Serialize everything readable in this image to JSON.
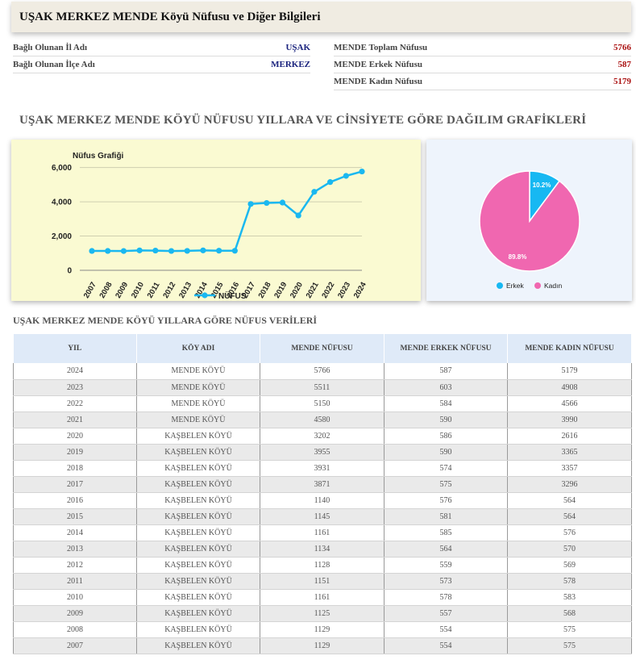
{
  "header": {
    "title": "UŞAK MERKEZ MENDE Köyü Nüfusu ve Diğer Bilgileri"
  },
  "info_left": [
    {
      "label": "Bağlı Olunan İl Adı",
      "value": "UŞAK"
    },
    {
      "label": "Bağlı Olunan İlçe Adı",
      "value": "MERKEZ"
    }
  ],
  "info_right": [
    {
      "label": "MENDE Toplam Nüfusu",
      "value": "5766"
    },
    {
      "label": "MENDE Erkek Nüfusu",
      "value": "587"
    },
    {
      "label": "MENDE Kadın Nüfusu",
      "value": "5179"
    }
  ],
  "section_title": "UŞAK MERKEZ MENDE KÖYÜ NÜFUSU YILLARA VE CİNSİYETE GÖRE DAĞILIM GRAFİKLERİ",
  "table_title": "UŞAK MERKEZ MENDE KÖYÜ YILLARA GÖRE NÜFUS VERİLERİ",
  "colors": {
    "line": "#1ab8f0",
    "erkek": "#17b8f2",
    "kadin": "#f067b0",
    "value_red": "#a11",
    "value_blue": "#1a237e"
  },
  "chart_data": [
    {
      "type": "line",
      "title": "Nüfus Grafiği",
      "x": [
        "2007",
        "2008",
        "2009",
        "2010",
        "2011",
        "2012",
        "2013",
        "2014",
        "2015",
        "2016",
        "2017",
        "2018",
        "2019",
        "2020",
        "2021",
        "2022",
        "2023",
        "2024"
      ],
      "series": [
        {
          "name": "NÜFUS",
          "values": [
            1129,
            1129,
            1125,
            1161,
            1151,
            1128,
            1134,
            1161,
            1145,
            1140,
            3871,
            3931,
            3955,
            3202,
            4580,
            5150,
            5511,
            5766
          ]
        }
      ],
      "yticks": [
        "0",
        "2,000",
        "4,000",
        "6,000"
      ],
      "ylim": [
        0,
        6500
      ],
      "legend": "bottom",
      "grid": true
    },
    {
      "type": "pie",
      "labels": [
        "Erkek",
        "Kadın"
      ],
      "values": [
        587,
        5179
      ],
      "data_labels": [
        "10.2%",
        "89.8%"
      ],
      "legend": "bottom"
    }
  ],
  "table": {
    "headers": [
      "YIL",
      "KÖY ADI",
      "MENDE NÜFUSU",
      "MENDE ERKEK NÜFUSU",
      "MENDE KADIN NÜFUSU"
    ],
    "rows": [
      [
        "2024",
        "MENDE KÖYÜ",
        "5766",
        "587",
        "5179"
      ],
      [
        "2023",
        "MENDE KÖYÜ",
        "5511",
        "603",
        "4908"
      ],
      [
        "2022",
        "MENDE KÖYÜ",
        "5150",
        "584",
        "4566"
      ],
      [
        "2021",
        "MENDE KÖYÜ",
        "4580",
        "590",
        "3990"
      ],
      [
        "2020",
        "KAŞBELEN KÖYÜ",
        "3202",
        "586",
        "2616"
      ],
      [
        "2019",
        "KAŞBELEN KÖYÜ",
        "3955",
        "590",
        "3365"
      ],
      [
        "2018",
        "KAŞBELEN KÖYÜ",
        "3931",
        "574",
        "3357"
      ],
      [
        "2017",
        "KAŞBELEN KÖYÜ",
        "3871",
        "575",
        "3296"
      ],
      [
        "2016",
        "KAŞBELEN KÖYÜ",
        "1140",
        "576",
        "564"
      ],
      [
        "2015",
        "KAŞBELEN KÖYÜ",
        "1145",
        "581",
        "564"
      ],
      [
        "2014",
        "KAŞBELEN KÖYÜ",
        "1161",
        "585",
        "576"
      ],
      [
        "2013",
        "KAŞBELEN KÖYÜ",
        "1134",
        "564",
        "570"
      ],
      [
        "2012",
        "KAŞBELEN KÖYÜ",
        "1128",
        "559",
        "569"
      ],
      [
        "2011",
        "KAŞBELEN KÖYÜ",
        "1151",
        "573",
        "578"
      ],
      [
        "2010",
        "KAŞBELEN KÖYÜ",
        "1161",
        "578",
        "583"
      ],
      [
        "2009",
        "KAŞBELEN KÖYÜ",
        "1125",
        "557",
        "568"
      ],
      [
        "2008",
        "KAŞBELEN KÖYÜ",
        "1129",
        "554",
        "575"
      ],
      [
        "2007",
        "KAŞBELEN KÖYÜ",
        "1129",
        "554",
        "575"
      ]
    ]
  }
}
